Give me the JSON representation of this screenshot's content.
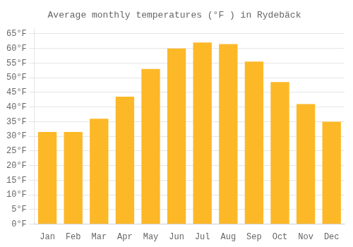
{
  "chart_data": {
    "type": "bar",
    "title": "Average monthly temperatures (°F ) in Rydebäck",
    "categories": [
      "Jan",
      "Feb",
      "Mar",
      "Apr",
      "May",
      "Jun",
      "Jul",
      "Aug",
      "Sep",
      "Oct",
      "Nov",
      "Dec"
    ],
    "values": [
      31.5,
      31.5,
      36.0,
      43.5,
      53.0,
      60.0,
      62.0,
      61.5,
      55.5,
      48.5,
      41.0,
      35.0
    ],
    "color": "#FDB827",
    "ylim": [
      0,
      67
    ],
    "yticks": [
      {
        "value": 0,
        "label": "0°F"
      },
      {
        "value": 5,
        "label": "5°F"
      },
      {
        "value": 10,
        "label": "10°F"
      },
      {
        "value": 15,
        "label": "15°F"
      },
      {
        "value": 20,
        "label": "20°F"
      },
      {
        "value": 25,
        "label": "25°F"
      },
      {
        "value": 30,
        "label": "30°F"
      },
      {
        "value": 35,
        "label": "35°F"
      },
      {
        "value": 40,
        "label": "40°F"
      },
      {
        "value": 45,
        "label": "45°F"
      },
      {
        "value": 50,
        "label": "50°F"
      },
      {
        "value": 55,
        "label": "55°F"
      },
      {
        "value": 60,
        "label": "60°F"
      },
      {
        "value": 65,
        "label": "65°F"
      }
    ],
    "grid": true
  }
}
